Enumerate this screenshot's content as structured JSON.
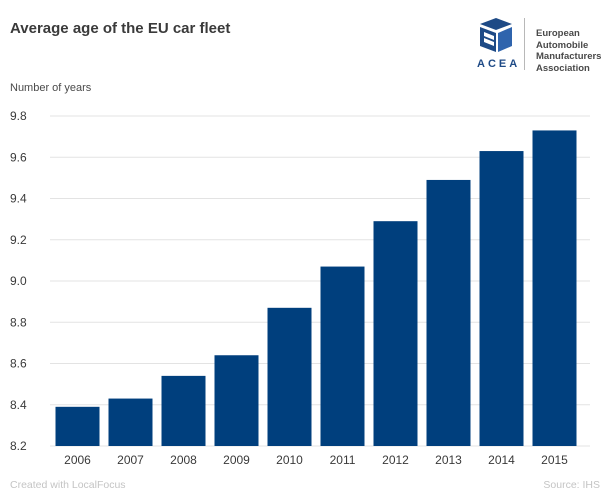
{
  "header": {
    "title": "Average age of the EU car fleet"
  },
  "logo": {
    "acronym": "ACEA",
    "lines": [
      "European",
      "Automobile",
      "Manufacturers",
      "Association"
    ],
    "color": "#1e4a86"
  },
  "footer": {
    "credit": "Created with LocalFocus",
    "source": "Source: IHS"
  },
  "colors": {
    "bar": "#003f7d",
    "grid": "#e3e3e3",
    "axis_text": "#3a3a3a"
  },
  "chart_data": {
    "type": "bar",
    "title": "Average age of the EU car fleet",
    "ylabel": "Number of years",
    "xlabel": "",
    "categories": [
      "2006",
      "2007",
      "2008",
      "2009",
      "2010",
      "2011",
      "2012",
      "2013",
      "2014",
      "2015"
    ],
    "values": [
      8.39,
      8.43,
      8.54,
      8.64,
      8.87,
      9.07,
      9.29,
      9.49,
      9.63,
      9.73
    ],
    "ylim": [
      8.2,
      9.8
    ],
    "yticks": [
      "8.2",
      "8.4",
      "8.6",
      "8.8",
      "9.0",
      "9.2",
      "9.4",
      "9.6",
      "9.8"
    ],
    "grid": true,
    "legend": "none"
  }
}
